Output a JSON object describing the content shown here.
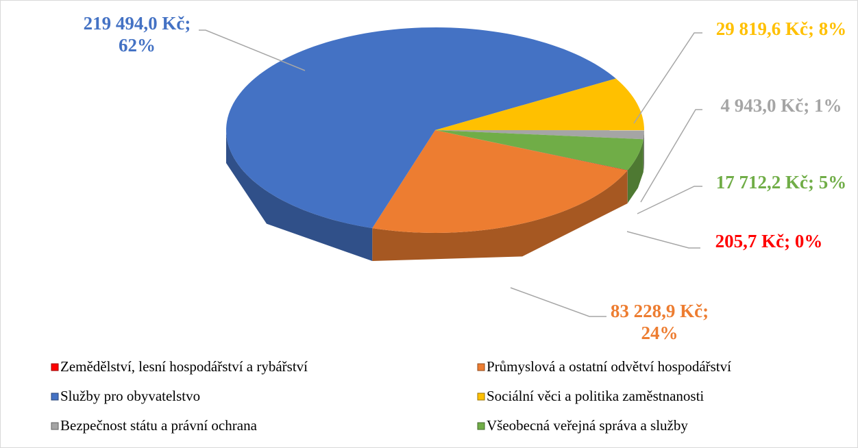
{
  "chart_data": {
    "type": "pie",
    "categories": [
      "Zemědělství, lesní hospodářství a rybářství",
      "Průmyslová a ostatní odvětví hospodářství",
      "Služby pro obyvatelstvo",
      "Sociální věci a politika zaměstnanosti",
      "Bezpečnost státu a právní ochrana",
      "Všeobecná veřejná správa a služby"
    ],
    "values": [
      205.7,
      83228.9,
      219494.0,
      29819.6,
      4943.0,
      17712.2
    ],
    "value_labels": [
      "205,7 Kč; 0%",
      "83 228,9 Kč; 24%",
      "219 494,0 Kč; 62%",
      "29 819,6 Kč; 8%",
      "4 943,0 Kč; 1%",
      "17 712,2 Kč; 5%"
    ],
    "colors": [
      "#ff0000",
      "#ed7d31",
      "#4472c4",
      "#ffc000",
      "#a5a5a5",
      "#70ad47"
    ],
    "legend": "bottom"
  }
}
